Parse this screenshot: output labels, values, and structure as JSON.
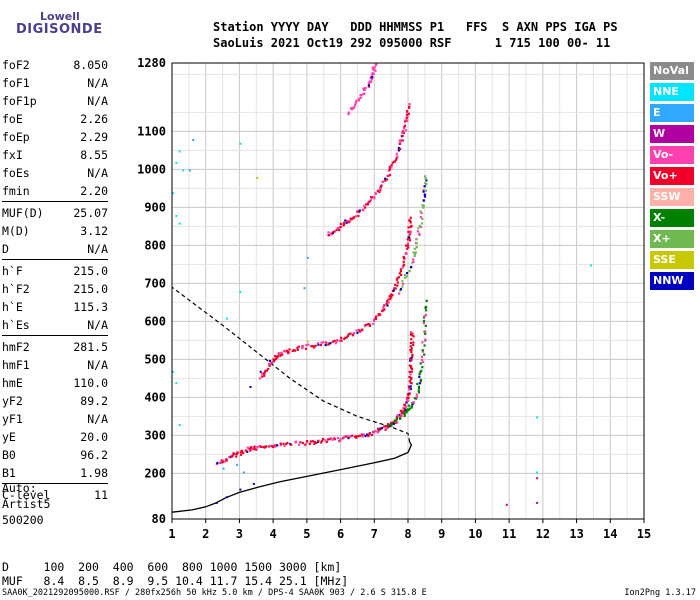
{
  "logo": {
    "line1": "Lowell",
    "line2": "DIGISONDE"
  },
  "header": {
    "line1": "Station YYYY DAY   DDD HHMMSS P1   FFS  S AXN PPS IGA PS",
    "line2": "SaoLuis 2021 Oct19 292 095000 RSF      1 715 100 00- 11"
  },
  "params": [
    [
      [
        "foF2",
        "8.050"
      ],
      [
        "foF1",
        "N/A"
      ],
      [
        "foF1p",
        "N/A"
      ],
      [
        "foE",
        "2.26"
      ],
      [
        "foEp",
        "2.29"
      ],
      [
        "fxI",
        "8.55"
      ],
      [
        "foEs",
        "N/A"
      ],
      [
        "fmin",
        "2.20"
      ]
    ],
    [
      [
        "MUF(D)",
        "25.07"
      ],
      [
        "M(D)",
        "3.12"
      ],
      [
        "D",
        "N/A"
      ]
    ],
    [
      [
        "h`F",
        "215.0"
      ],
      [
        "h`F2",
        "215.0"
      ],
      [
        "h`E",
        "115.3"
      ],
      [
        "h`Es",
        "N/A"
      ]
    ],
    [
      [
        "hmF2",
        "281.5"
      ],
      [
        "hmF1",
        "N/A"
      ],
      [
        "hmE",
        "110.0"
      ],
      [
        "yF2",
        "89.2"
      ],
      [
        "yF1",
        "N/A"
      ],
      [
        "yE",
        "20.0"
      ],
      [
        "B0",
        "96.2"
      ],
      [
        "B1",
        "1.98"
      ]
    ],
    [
      [
        "C-level",
        "11"
      ]
    ]
  ],
  "auto": {
    "line1": "Auto:",
    "line2": "Artist5",
    "line3": "500200"
  },
  "legend": [
    {
      "label": "NoVal",
      "color": "#8c8c8c"
    },
    {
      "label": "NNE",
      "color": "#00e5ff"
    },
    {
      "label": "E",
      "color": "#30a8ff"
    },
    {
      "label": "W",
      "color": "#b000a0"
    },
    {
      "label": "Vo-",
      "color": "#ff40b0"
    },
    {
      "label": "Vo+",
      "color": "#f00028"
    },
    {
      "label": "SSW",
      "color": "#ffb0a8"
    },
    {
      "label": "X-",
      "color": "#008000"
    },
    {
      "label": "X+",
      "color": "#70b850"
    },
    {
      "label": "SSE",
      "color": "#c8c800"
    },
    {
      "label": "NNW",
      "color": "#0000c0"
    }
  ],
  "dtable": {
    "line1": "D     100  200  400  600  800 1000 1500 3000 [km]",
    "line2": "MUF   8.4  8.5  8.9  9.5 10.4 11.7 15.4 25.1 [MHz]"
  },
  "footer": "SAA0K_2021292095000.RSF / 280fx256h 50 kHz 5.0 km / DPS-4 SAA0K 903 / 2.6 S 315.8 E",
  "version": "Ion2Png 1.3.17",
  "chart_data": {
    "type": "scatter",
    "xlim": [
      1,
      15
    ],
    "ylim": [
      80,
      1280
    ],
    "x_ticks": [
      1,
      2,
      3,
      4,
      5,
      6,
      7,
      8,
      9,
      10,
      11,
      12,
      13,
      14,
      15
    ],
    "y_ticks": [
      80,
      200,
      300,
      400,
      500,
      600,
      700,
      800,
      900,
      1000,
      1100,
      1280
    ],
    "grid": true,
    "traces": [
      {
        "name": "F2 first hop",
        "color": "#f00028",
        "points": [
          [
            2.3,
            228
          ],
          [
            2.8,
            250
          ],
          [
            3.2,
            265
          ],
          [
            3.6,
            272
          ],
          [
            4.2,
            278
          ],
          [
            5.0,
            284
          ],
          [
            5.6,
            290
          ],
          [
            6.2,
            296
          ],
          [
            6.8,
            305
          ],
          [
            7.2,
            318
          ],
          [
            7.6,
            340
          ],
          [
            7.85,
            370
          ],
          [
            8.0,
            410
          ],
          [
            8.05,
            460
          ],
          [
            8.08,
            520
          ],
          [
            8.1,
            580
          ]
        ]
      },
      {
        "name": "F2 second hop",
        "color": "#f00028",
        "points": [
          [
            3.6,
            455
          ],
          [
            3.9,
            495
          ],
          [
            4.2,
            518
          ],
          [
            4.6,
            530
          ],
          [
            5.2,
            540
          ],
          [
            5.8,
            550
          ],
          [
            6.4,
            570
          ],
          [
            6.9,
            600
          ],
          [
            7.3,
            640
          ],
          [
            7.6,
            690
          ],
          [
            7.85,
            760
          ],
          [
            8.0,
            820
          ],
          [
            8.05,
            880
          ]
        ]
      },
      {
        "name": "F2 third hop",
        "color": "#f00028",
        "points": [
          [
            5.6,
            830
          ],
          [
            6.0,
            855
          ],
          [
            6.4,
            880
          ],
          [
            6.8,
            915
          ],
          [
            7.2,
            960
          ],
          [
            7.5,
            1010
          ],
          [
            7.75,
            1070
          ],
          [
            7.9,
            1120
          ],
          [
            8.0,
            1175
          ]
        ]
      },
      {
        "name": "F2 fourth hop",
        "color": "#ff40b0",
        "points": [
          [
            6.2,
            1150
          ],
          [
            6.6,
            1200
          ],
          [
            6.9,
            1240
          ],
          [
            7.0,
            1280
          ]
        ]
      },
      {
        "name": "F2 extraordinary",
        "color": "#008000",
        "points": [
          [
            7.4,
            330
          ],
          [
            7.9,
            360
          ],
          [
            8.2,
            400
          ],
          [
            8.35,
            460
          ],
          [
            8.45,
            560
          ],
          [
            8.5,
            660
          ]
        ]
      },
      {
        "name": "F2 extraordinary second hop",
        "color": "#70b850",
        "points": [
          [
            7.7,
            680
          ],
          [
            8.1,
            760
          ],
          [
            8.3,
            840
          ],
          [
            8.45,
            930
          ],
          [
            8.5,
            990
          ]
        ]
      }
    ],
    "scattered_echoes": [
      {
        "color": "#00e5ff",
        "points": [
          [
            1.1,
            1020
          ],
          [
            1.2,
            1050
          ],
          [
            1.3,
            1000
          ],
          [
            1.0,
            940
          ],
          [
            1.1,
            880
          ],
          [
            1.2,
            860
          ],
          [
            1.0,
            470
          ],
          [
            1.1,
            440
          ],
          [
            1.2,
            330
          ],
          [
            3.0,
            1070
          ],
          [
            3.0,
            680
          ],
          [
            11.8,
            350
          ],
          [
            11.8,
            205
          ],
          [
            13.4,
            750
          ],
          [
            2.6,
            610
          ]
        ]
      },
      {
        "color": "#30a8ff",
        "points": [
          [
            1.6,
            1080
          ],
          [
            1.5,
            1000
          ],
          [
            2.5,
            215
          ],
          [
            2.9,
            225
          ],
          [
            3.1,
            205
          ],
          [
            5.0,
            770
          ],
          [
            4.9,
            690
          ]
        ]
      },
      {
        "color": "#b000a0",
        "points": [
          [
            10.9,
            120
          ],
          [
            11.8,
            125
          ],
          [
            11.8,
            190
          ]
        ]
      },
      {
        "color": "#c8c800",
        "points": [
          [
            3.5,
            980
          ],
          [
            5.0,
            550
          ]
        ]
      },
      {
        "color": "#0000c0",
        "points": [
          [
            2.3,
            125
          ],
          [
            2.6,
            140
          ],
          [
            3.0,
            160
          ],
          [
            3.4,
            175
          ],
          [
            3.3,
            430
          ],
          [
            3.6,
            470
          ]
        ]
      }
    ],
    "profile_curve": {
      "color": "#000000",
      "points": [
        [
          1.0,
          98
        ],
        [
          1.6,
          104
        ],
        [
          2.0,
          112
        ],
        [
          2.3,
          122
        ],
        [
          2.6,
          136
        ],
        [
          3.0,
          150
        ],
        [
          3.6,
          165
        ],
        [
          4.2,
          178
        ],
        [
          5.0,
          192
        ],
        [
          6.0,
          210
        ],
        [
          7.0,
          228
        ],
        [
          7.6,
          240
        ],
        [
          8.0,
          255
        ],
        [
          8.1,
          275
        ],
        [
          8.05,
          282
        ]
      ]
    },
    "profile_extrapolation": {
      "color": "#000000",
      "points": [
        [
          8.05,
          282
        ],
        [
          8.0,
          305
        ],
        [
          7.5,
          322
        ],
        [
          6.5,
          350
        ],
        [
          5.5,
          390
        ],
        [
          4.5,
          450
        ],
        [
          3.5,
          520
        ],
        [
          2.5,
          590
        ],
        [
          1.6,
          650
        ],
        [
          1.0,
          690
        ]
      ]
    }
  }
}
